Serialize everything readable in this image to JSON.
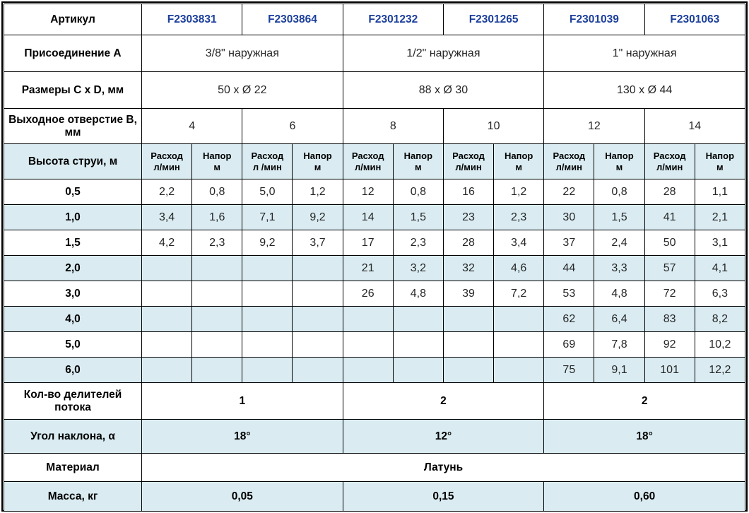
{
  "colors": {
    "article_text_blue": "#1c3f9c",
    "stripe_blue": "#daecf2",
    "border_black": "#000000"
  },
  "table": {
    "article": {
      "label": "Артикул",
      "values": [
        "F2303831",
        "F2303864",
        "F2301232",
        "F2301265",
        "F2301039",
        "F2301063"
      ]
    },
    "connection": {
      "label": "Присоединение A",
      "values": [
        "3/8\" наружная",
        "1/2\" наружная",
        "1\" наружная"
      ]
    },
    "dimensions": {
      "label": "Размеры C x D, мм",
      "values": [
        "50 x Ø 22",
        "88 x Ø 30",
        "130 x Ø 44"
      ]
    },
    "outlet": {
      "label": "Выходное отверстие B, мм",
      "values": [
        "4",
        "6",
        "8",
        "10",
        "12",
        "14"
      ]
    },
    "jet_header": {
      "label": "Высота струи, м",
      "subheaders": [
        "Расход\nл/мин",
        "Напор\nм",
        "Расход\nл /мин",
        "Напор\nм",
        "Расход\nл/мин",
        "Напор\nм",
        "Расход\nл/мин",
        "Напор\nм",
        "Расход\nл/мин",
        "Напор\nм",
        "Расход\nл/мин",
        "Напор\nм"
      ]
    },
    "data_rows": [
      {
        "height": "0,5",
        "values": [
          "2,2",
          "0,8",
          "5,0",
          "1,2",
          "12",
          "0,8",
          "16",
          "1,2",
          "22",
          "0,8",
          "28",
          "1,1"
        ]
      },
      {
        "height": "1,0",
        "values": [
          "3,4",
          "1,6",
          "7,1",
          "9,2",
          "14",
          "1,5",
          "23",
          "2,3",
          "30",
          "1,5",
          "41",
          "2,1"
        ]
      },
      {
        "height": "1,5",
        "values": [
          "4,2",
          "2,3",
          "9,2",
          "3,7",
          "17",
          "2,3",
          "28",
          "3,4",
          "37",
          "2,4",
          "50",
          "3,1"
        ]
      },
      {
        "height": "2,0",
        "values": [
          "",
          "",
          "",
          "",
          "21",
          "3,2",
          "32",
          "4,6",
          "44",
          "3,3",
          "57",
          "4,1"
        ]
      },
      {
        "height": "3,0",
        "values": [
          "",
          "",
          "",
          "",
          "26",
          "4,8",
          "39",
          "7,2",
          "53",
          "4,8",
          "72",
          "6,3"
        ]
      },
      {
        "height": "4,0",
        "values": [
          "",
          "",
          "",
          "",
          "",
          "",
          "",
          "",
          "62",
          "6,4",
          "83",
          "8,2"
        ]
      },
      {
        "height": "5,0",
        "values": [
          "",
          "",
          "",
          "",
          "",
          "",
          "",
          "",
          "69",
          "7,8",
          "92",
          "10,2"
        ]
      },
      {
        "height": "6,0",
        "values": [
          "",
          "",
          "",
          "",
          "",
          "",
          "",
          "",
          "75",
          "9,1",
          "101",
          "12,2"
        ]
      }
    ],
    "dividers": {
      "label": "Кол-во делителей потока",
      "values": [
        "1",
        "2",
        "2"
      ]
    },
    "angle": {
      "label": "Угол наклона, α",
      "values": [
        "18°",
        "12°",
        "18°"
      ]
    },
    "material": {
      "label": "Материал",
      "value": "Латунь"
    },
    "mass": {
      "label": "Масса, кг",
      "values": [
        "0,05",
        "0,15",
        "0,60"
      ]
    }
  }
}
